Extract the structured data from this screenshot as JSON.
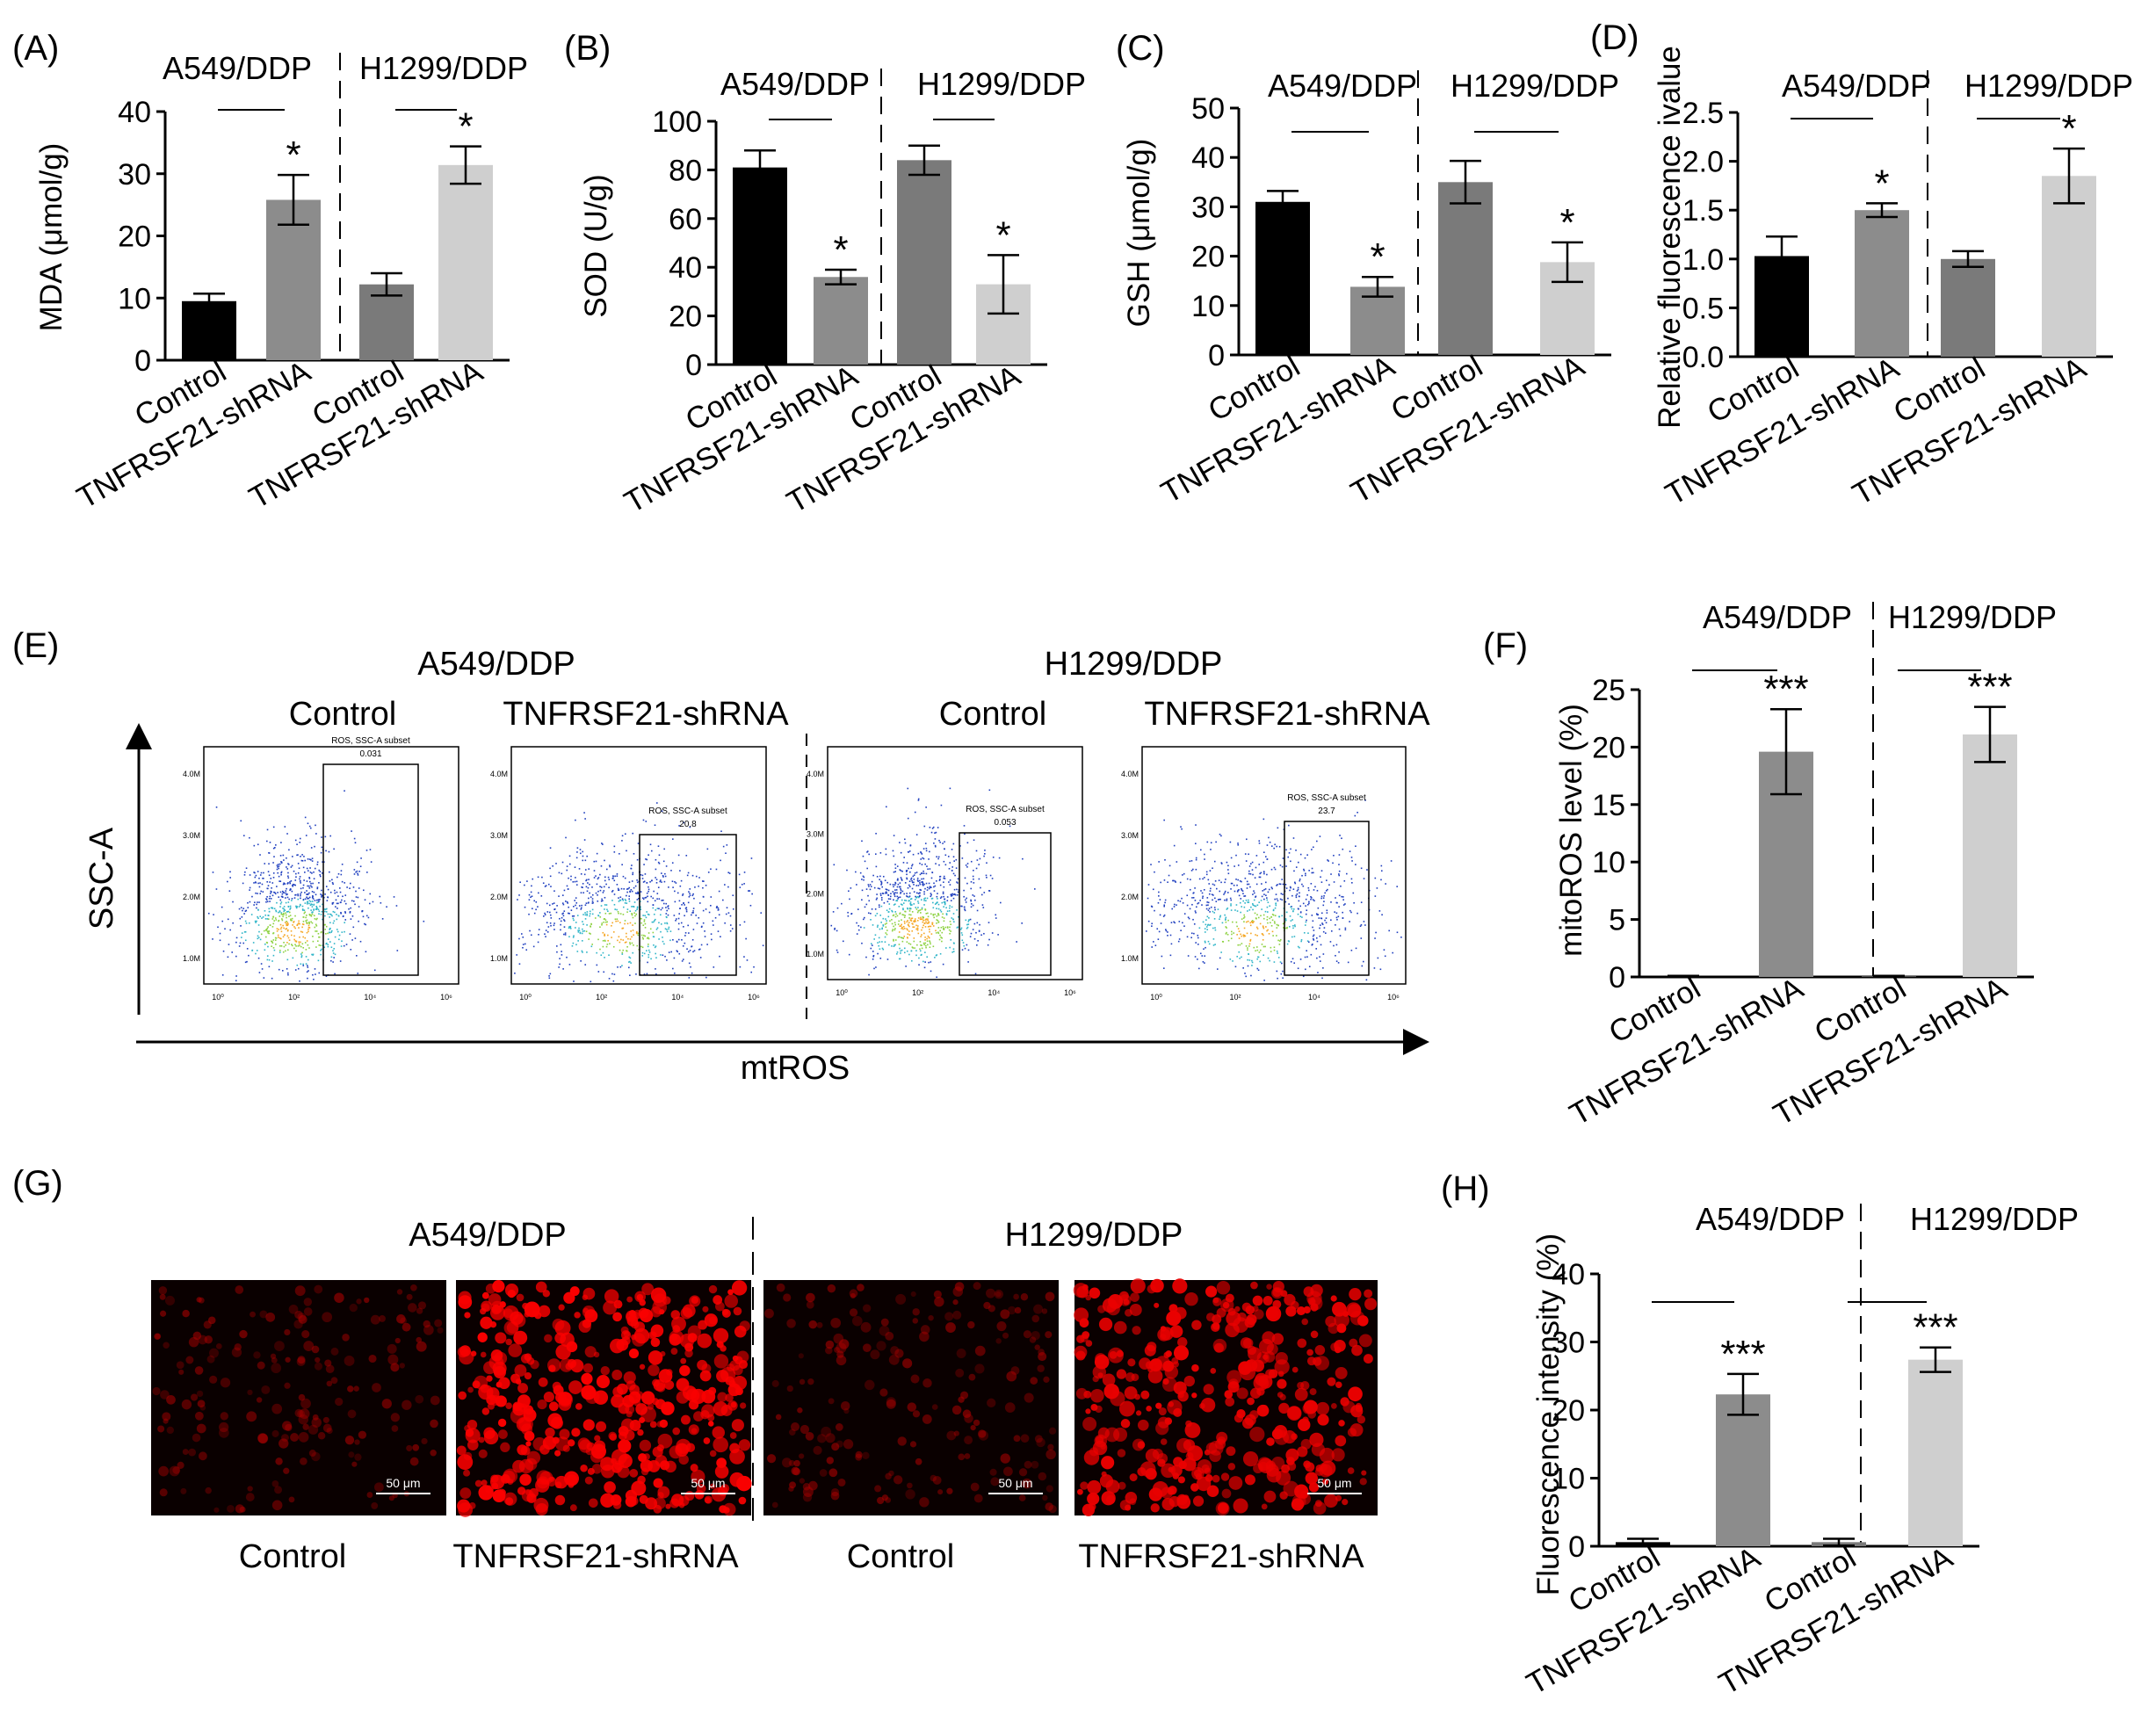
{
  "panels": [
    {
      "letter": "(A)"
    },
    {
      "letter": "(B)"
    },
    {
      "letter": "(C)"
    },
    {
      "letter": "(D)"
    },
    {
      "letter": "(E)"
    },
    {
      "letter": "(F)"
    },
    {
      "letter": "(G)"
    },
    {
      "letter": "(H)"
    }
  ],
  "chart_data": [
    {
      "id": "A",
      "type": "bar",
      "ylabel": "MDA (μmol/g)",
      "ylim": [
        0,
        40
      ],
      "yticks": [
        0,
        10,
        20,
        30,
        40
      ],
      "groups": [
        "A549/DDP",
        "H1299/DDP"
      ],
      "categories": [
        "Control",
        "TNFRSF21-shRNA",
        "Control",
        "TNFRSF21-shRNA"
      ],
      "values": [
        9.5,
        25.8,
        12.2,
        31.4
      ],
      "errors": [
        1.2,
        4.0,
        1.8,
        3.0
      ],
      "sig": [
        "",
        "*",
        "",
        "*"
      ],
      "colors": [
        "#000000",
        "#8c8c8c",
        "#7a7a7a",
        "#cfcfcf"
      ]
    },
    {
      "id": "B",
      "type": "bar",
      "ylabel": "SOD (U/g)",
      "ylim": [
        0,
        100
      ],
      "yticks": [
        0,
        20,
        40,
        60,
        80,
        100
      ],
      "groups": [
        "A549/DDP",
        "H1299/DDP"
      ],
      "categories": [
        "Control",
        "TNFRSF21-shRNA",
        "Control",
        "TNFRSF21-shRNA"
      ],
      "values": [
        81,
        36,
        84,
        33
      ],
      "errors": [
        7,
        3,
        6,
        12
      ],
      "sig": [
        "",
        "*",
        "",
        "*"
      ],
      "colors": [
        "#000000",
        "#8c8c8c",
        "#7a7a7a",
        "#cfcfcf"
      ]
    },
    {
      "id": "C",
      "type": "bar",
      "ylabel": "GSH (μmol/g)",
      "ylim": [
        0,
        50
      ],
      "yticks": [
        0,
        10,
        20,
        30,
        40,
        50
      ],
      "groups": [
        "A549/DDP",
        "H1299/DDP"
      ],
      "categories": [
        "Control",
        "TNFRSF21-shRNA",
        "Control",
        "TNFRSF21-shRNA"
      ],
      "values": [
        31,
        13.8,
        35,
        18.8
      ],
      "errors": [
        2.2,
        2.0,
        4.3,
        4.0
      ],
      "sig": [
        "",
        "*",
        "",
        "*"
      ],
      "colors": [
        "#000000",
        "#8c8c8c",
        "#7a7a7a",
        "#cfcfcf"
      ]
    },
    {
      "id": "D",
      "type": "bar",
      "ylabel": "Relative fluorescence ivalue",
      "ylim": [
        0,
        2.5
      ],
      "yticks": [
        0.0,
        0.5,
        1.0,
        1.5,
        2.0,
        2.5
      ],
      "groups": [
        "A549/DDP",
        "H1299/DDP"
      ],
      "categories": [
        "Control",
        "TNFRSF21-shRNA",
        "Control",
        "TNFRSF21-shRNA"
      ],
      "values": [
        1.03,
        1.5,
        1.0,
        1.85
      ],
      "errors": [
        0.2,
        0.07,
        0.08,
        0.28
      ],
      "sig": [
        "",
        "*",
        "",
        "*"
      ],
      "colors": [
        "#000000",
        "#8c8c8c",
        "#7a7a7a",
        "#cfcfcf"
      ]
    },
    {
      "id": "F",
      "type": "bar",
      "ylabel": "mitoROS level (%)",
      "ylim": [
        0,
        25
      ],
      "yticks": [
        0,
        5,
        10,
        15,
        20,
        25
      ],
      "groups": [
        "A549/DDP",
        "H1299/DDP"
      ],
      "categories": [
        "Control",
        "TNFRSF21-shRNA",
        "Control",
        "TNFRSF21-shRNA"
      ],
      "values": [
        0.05,
        19.6,
        0.05,
        21.1
      ],
      "errors": [
        0,
        3.7,
        0,
        2.4
      ],
      "sig": [
        "",
        "***",
        "",
        "***"
      ],
      "colors": [
        "#000000",
        "#8c8c8c",
        "#7a7a7a",
        "#cfcfcf"
      ]
    },
    {
      "id": "H",
      "type": "bar",
      "ylabel": "Fluorescence intensity (%)",
      "ylim": [
        0,
        40
      ],
      "yticks": [
        0,
        10,
        20,
        30,
        40
      ],
      "groups": [
        "A549/DDP",
        "H1299/DDP"
      ],
      "categories": [
        "Control",
        "TNFRSF21-shRNA",
        "Control",
        "TNFRSF21-shRNA"
      ],
      "values": [
        0.6,
        22.3,
        0.6,
        27.4
      ],
      "errors": [
        0.5,
        3.0,
        0.5,
        1.8
      ],
      "sig": [
        "",
        "***",
        "",
        "***"
      ],
      "colors": [
        "#000000",
        "#8c8c8c",
        "#7a7a7a",
        "#cfcfcf"
      ]
    }
  ],
  "flow": {
    "groups": [
      "A549/DDP",
      "H1299/DDP"
    ],
    "conditions": [
      "Control",
      "TNFRSF21-shRNA",
      "Control",
      "TNFRSF21-shRNA"
    ],
    "y_axis_label": "SSC-A",
    "x_axis_label": "mtROS",
    "gate_label": "ROS, SSC-A subset",
    "gate_values": [
      "0.031",
      "20.8",
      "0.053",
      "23.7"
    ],
    "yticks": [
      "4.0M",
      "3.0M",
      "2.0M",
      "1.0M"
    ],
    "xticks": [
      "10⁰",
      "10²",
      "10⁴",
      "10⁶"
    ]
  },
  "microscopy": {
    "groups": [
      "A549/DDP",
      "H1299/DDP"
    ],
    "conditions": [
      "Control",
      "TNFRSF21-shRNA",
      "Control",
      "TNFRSF21-shRNA"
    ],
    "scalebar": "50 μm",
    "intensity": [
      0.2,
      0.95,
      0.22,
      0.8
    ]
  }
}
